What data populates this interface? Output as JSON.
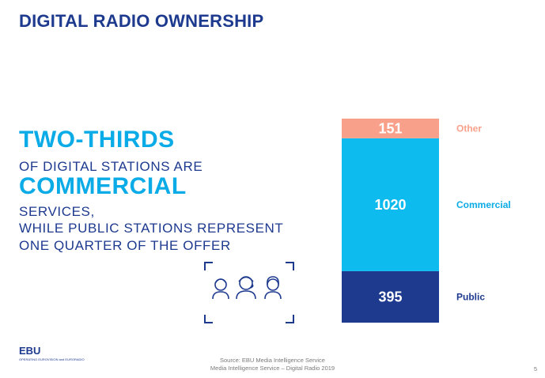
{
  "slide": {
    "title": "DIGITAL RADIO OWNERSHIP",
    "headline": {
      "line1": "TWO-THIRDS",
      "line2": "OF DIGITAL STATIONS ARE",
      "line3": "COMMERCIAL",
      "line4": "SERVICES,",
      "line5": "WHILE PUBLIC STATIONS REPRESENT",
      "line6": "ONE QUARTER OF THE OFFER"
    },
    "logo": {
      "text": "EBU",
      "subtext": "OPERATING EUROVISION and EURORADIO"
    },
    "source_line1": "Source: EBU Media Intelligence Service",
    "source_line2": "Media Intelligence Service – Digital Radio 2019",
    "page_number": "5",
    "icon": "people-group-icon"
  },
  "chart_data": {
    "type": "bar",
    "stacked": true,
    "categories": [
      ""
    ],
    "series": [
      {
        "name": "Public",
        "values": [
          395
        ],
        "color": "#1d3a8f",
        "label_color": "#1d3a8f"
      },
      {
        "name": "Commercial",
        "values": [
          1020
        ],
        "color": "#0dbbee",
        "label_color": "#0aabe6"
      },
      {
        "name": "Other",
        "values": [
          151
        ],
        "color": "#f9a08a",
        "label_color": "#f9a08a"
      }
    ],
    "total": 1566,
    "legend_position": "right",
    "grid": false
  }
}
